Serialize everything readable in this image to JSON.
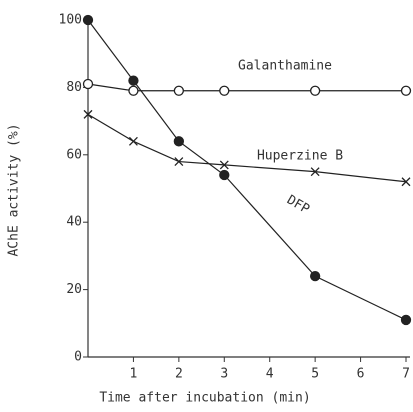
{
  "chart_data": {
    "type": "line",
    "xlabel": "Time after incubation (min)",
    "ylabel": "AChE activity (%)",
    "xlim": [
      0,
      7
    ],
    "xticks": [
      1,
      2,
      3,
      4,
      5,
      6,
      7
    ],
    "ylim": [
      0,
      100
    ],
    "yticks": [
      0,
      20,
      40,
      60,
      80,
      100
    ],
    "series": [
      {
        "name": "Galanthamine",
        "color": "#222222",
        "marker": "open-circle",
        "x": [
          0,
          1,
          2,
          3,
          5,
          7
        ],
        "values": [
          81,
          79,
          79,
          79,
          79,
          79
        ]
      },
      {
        "name": "Huperzine B",
        "color": "#222222",
        "marker": "x",
        "x": [
          0,
          1,
          2,
          3,
          5,
          7
        ],
        "values": [
          72,
          64,
          58,
          57,
          55,
          52
        ]
      },
      {
        "name": "DFP",
        "color": "#222222",
        "marker": "filled-circle",
        "x": [
          0,
          1,
          2,
          3,
          5,
          7
        ],
        "values": [
          100,
          82,
          64,
          54,
          24,
          11
        ]
      }
    ]
  }
}
